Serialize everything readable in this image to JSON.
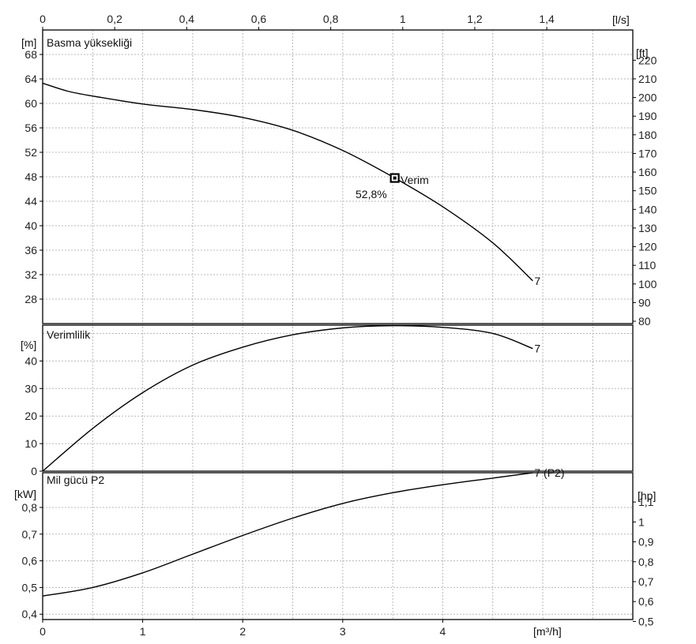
{
  "chart_data": [
    {
      "type": "line",
      "panel": "head",
      "title": "Basma yüksekliği",
      "unit_left": "[m]",
      "unit_right": "[ft]",
      "unit_top": "[l/s]",
      "ylim": [
        24,
        72
      ],
      "yticks": [
        28,
        32,
        36,
        40,
        44,
        48,
        52,
        56,
        60,
        64,
        68
      ],
      "right_ticks": [
        80,
        90,
        100,
        110,
        120,
        130,
        140,
        150,
        160,
        170,
        180,
        190,
        200,
        210,
        220
      ],
      "top_ticks": [
        0,
        0.2,
        0.4,
        0.6,
        0.8,
        1.0,
        1.2,
        1.4
      ],
      "top_tick_labels": [
        "0",
        "0,2",
        "0,4",
        "0,6",
        "0,8",
        "1",
        "1,2",
        "1,4"
      ],
      "series": [
        {
          "name": "7",
          "x": [
            0,
            0.25,
            0.5,
            1.0,
            1.5,
            2.0,
            2.5,
            3.0,
            3.52,
            4.0,
            4.5,
            4.9
          ],
          "y": [
            63.3,
            62.0,
            61.2,
            59.9,
            59.0,
            57.7,
            55.6,
            52.3,
            47.8,
            43.1,
            37.2,
            31.0
          ]
        }
      ],
      "marker": {
        "x": 3.52,
        "y": 47.8,
        "label": "Verim",
        "value_label": "52,8%"
      }
    },
    {
      "type": "line",
      "panel": "efficiency",
      "title": "Verimlilik",
      "unit_left": "[%]",
      "ylim": [
        0,
        53
      ],
      "yticks": [
        0,
        10,
        20,
        30,
        40
      ],
      "series": [
        {
          "name": "7",
          "x": [
            0,
            0.5,
            1.0,
            1.5,
            2.0,
            2.5,
            3.0,
            3.5,
            4.0,
            4.5,
            4.9
          ],
          "y": [
            0,
            15.5,
            28.5,
            38.5,
            45.0,
            49.5,
            52.0,
            52.8,
            52.2,
            50.0,
            44.5
          ]
        }
      ]
    },
    {
      "type": "line",
      "panel": "power",
      "title": "Mil gücü P2",
      "unit_left": "[kW]",
      "unit_right": "[hp]",
      "unit_bottom": "[m³/h]",
      "ylim": [
        0.38,
        0.93
      ],
      "yticks": [
        0.4,
        0.5,
        0.6,
        0.7,
        0.8
      ],
      "ytick_labels": [
        "0,4",
        "0,5",
        "0,6",
        "0,7",
        "0,8"
      ],
      "right_ticks": [
        0.5,
        0.6,
        0.7,
        0.8,
        0.9,
        1.0,
        1.1
      ],
      "right_tick_labels": [
        "0,5",
        "0,6",
        "0,7",
        "0,8",
        "0,9",
        "1",
        "1,1"
      ],
      "xticks": [
        0,
        1,
        2,
        3,
        4
      ],
      "series": [
        {
          "name": "7 (P2)",
          "x": [
            0,
            0.5,
            1.0,
            1.5,
            2.0,
            2.5,
            3.0,
            3.5,
            4.0,
            4.5,
            4.9
          ],
          "y": [
            0.468,
            0.5,
            0.555,
            0.625,
            0.695,
            0.76,
            0.815,
            0.855,
            0.885,
            0.91,
            0.93
          ]
        }
      ]
    }
  ],
  "x_axis": {
    "unit": "[m³/h]",
    "xlim": [
      0,
      5.9
    ],
    "ticks": [
      0,
      1,
      2,
      3,
      4
    ]
  }
}
